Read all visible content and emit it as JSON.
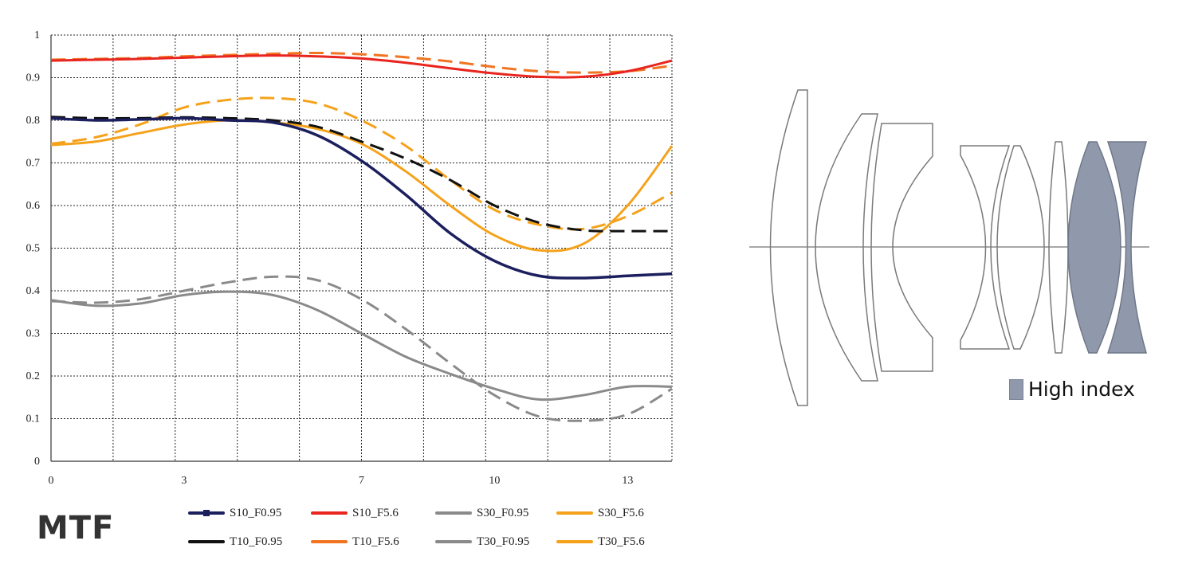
{
  "chart_data": {
    "type": "line",
    "xlim": [
      0,
      14
    ],
    "ylim": [
      0,
      1
    ],
    "x_ticks": [
      "0",
      "3",
      "7",
      "10",
      "13"
    ],
    "y_ticks": [
      "0",
      "0.1",
      "0.2",
      "0.3",
      "0.4",
      "0.5",
      "0.6",
      "0.7",
      "0.8",
      "0.9",
      "1"
    ],
    "grid": true,
    "legend_position": "bottom",
    "series": [
      {
        "name": "S10_F0.95",
        "color": "#1c1f5e",
        "style": "solid",
        "marker": true,
        "x": [
          0,
          1,
          2,
          3,
          4,
          5,
          6,
          7,
          8,
          9,
          10,
          11,
          12,
          13,
          14
        ],
        "y": [
          0.805,
          0.8,
          0.802,
          0.805,
          0.8,
          0.795,
          0.765,
          0.705,
          0.625,
          0.535,
          0.47,
          0.435,
          0.43,
          0.435,
          0.44
        ]
      },
      {
        "name": "S10_F5.6",
        "color": "#e8251f",
        "style": "solid",
        "x": [
          0,
          1,
          2,
          3,
          4,
          5,
          6,
          7,
          8,
          9,
          10,
          11,
          12,
          13,
          14
        ],
        "y": [
          0.94,
          0.942,
          0.944,
          0.947,
          0.95,
          0.952,
          0.95,
          0.945,
          0.935,
          0.922,
          0.91,
          0.902,
          0.902,
          0.915,
          0.94
        ]
      },
      {
        "name": "S30_F0.95",
        "color": "#8a8a8a",
        "style": "solid",
        "x": [
          0,
          1,
          2,
          3,
          4,
          5,
          6,
          7,
          8,
          9,
          10,
          11,
          12,
          13,
          14
        ],
        "y": [
          0.378,
          0.365,
          0.37,
          0.39,
          0.398,
          0.39,
          0.355,
          0.3,
          0.245,
          0.205,
          0.17,
          0.145,
          0.155,
          0.175,
          0.175
        ]
      },
      {
        "name": "S30_F5.6",
        "color": "#f5a21b",
        "style": "solid",
        "x": [
          0,
          1,
          2,
          3,
          4,
          5,
          6,
          7,
          8,
          9,
          10,
          11,
          12,
          13,
          14
        ],
        "y": [
          0.742,
          0.75,
          0.77,
          0.79,
          0.8,
          0.795,
          0.78,
          0.745,
          0.68,
          0.6,
          0.53,
          0.495,
          0.51,
          0.6,
          0.74
        ]
      },
      {
        "name": "T10_F0.95",
        "color": "#111111",
        "style": "dashed",
        "x": [
          0,
          1,
          2,
          3,
          4,
          5,
          6,
          7,
          8,
          9,
          10,
          11,
          12,
          13,
          14
        ],
        "y": [
          0.808,
          0.805,
          0.805,
          0.807,
          0.805,
          0.8,
          0.785,
          0.75,
          0.71,
          0.66,
          0.6,
          0.56,
          0.542,
          0.54,
          0.54
        ]
      },
      {
        "name": "T10_F5.6",
        "color": "#f07421",
        "style": "dashed",
        "x": [
          0,
          1,
          2,
          3,
          4,
          5,
          6,
          7,
          8,
          9,
          10,
          11,
          12,
          13,
          14
        ],
        "y": [
          0.942,
          0.944,
          0.946,
          0.95,
          0.953,
          0.956,
          0.958,
          0.955,
          0.948,
          0.938,
          0.925,
          0.915,
          0.912,
          0.915,
          0.928
        ]
      },
      {
        "name": "T30_F0.95",
        "color": "#8a8a8a",
        "style": "dashed",
        "x": [
          0,
          1,
          2,
          3,
          4,
          5,
          6,
          7,
          8,
          9,
          10,
          11,
          12,
          13,
          14
        ],
        "y": [
          0.376,
          0.372,
          0.38,
          0.4,
          0.42,
          0.433,
          0.425,
          0.38,
          0.31,
          0.23,
          0.155,
          0.105,
          0.095,
          0.11,
          0.17
        ]
      },
      {
        "name": "T30_F5.6",
        "color": "#f5a21b",
        "style": "dashed",
        "x": [
          0,
          1,
          2,
          3,
          4,
          5,
          6,
          7,
          8,
          9,
          10,
          11,
          12,
          13,
          14
        ],
        "y": [
          0.745,
          0.76,
          0.79,
          0.83,
          0.848,
          0.852,
          0.84,
          0.8,
          0.74,
          0.66,
          0.59,
          0.555,
          0.545,
          0.575,
          0.63
        ]
      }
    ],
    "legend_order": [
      "S10_F0.95",
      "S10_F5.6",
      "S30_F0.95",
      "S30_F5.6",
      "T10_F0.95",
      "T10_F5.6",
      "T30_F0.95",
      "T30_F5.6"
    ]
  },
  "mtf_label": "MTF",
  "lens_legend": {
    "label": "High index",
    "color": "#8f99ab"
  }
}
